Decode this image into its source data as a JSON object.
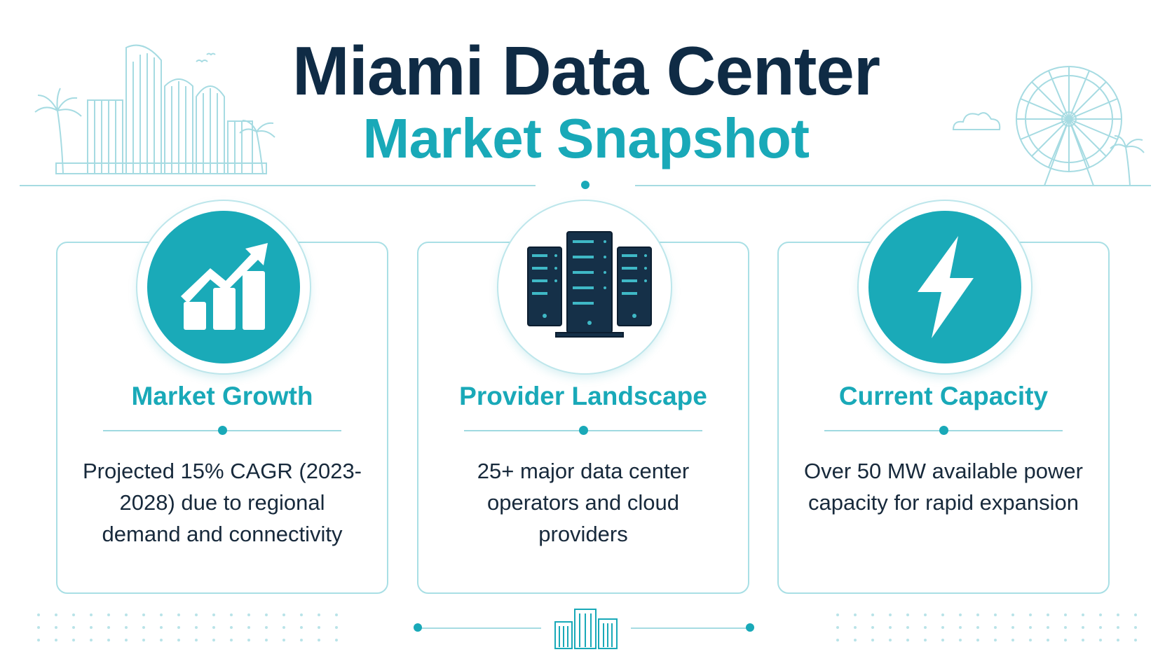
{
  "header": {
    "title": "Miami Data Center",
    "subtitle": "Market Snapshot"
  },
  "cards": [
    {
      "title": "Market Growth",
      "body": "Projected 15% CAGR (2023-2028) due to regional demand and connectivity",
      "icon": "growth-chart-icon"
    },
    {
      "title": "Provider Landscape",
      "body": "25+ major data center operators and cloud providers",
      "icon": "server-rack-icon"
    },
    {
      "title": "Current Capacity",
      "body": "Over 50 MW available power capacity for rapid expansion",
      "icon": "lightning-bolt-icon"
    }
  ],
  "colors": {
    "navy": "#0f2b45",
    "teal": "#19a9b8",
    "light_teal": "#a9dfe5"
  }
}
